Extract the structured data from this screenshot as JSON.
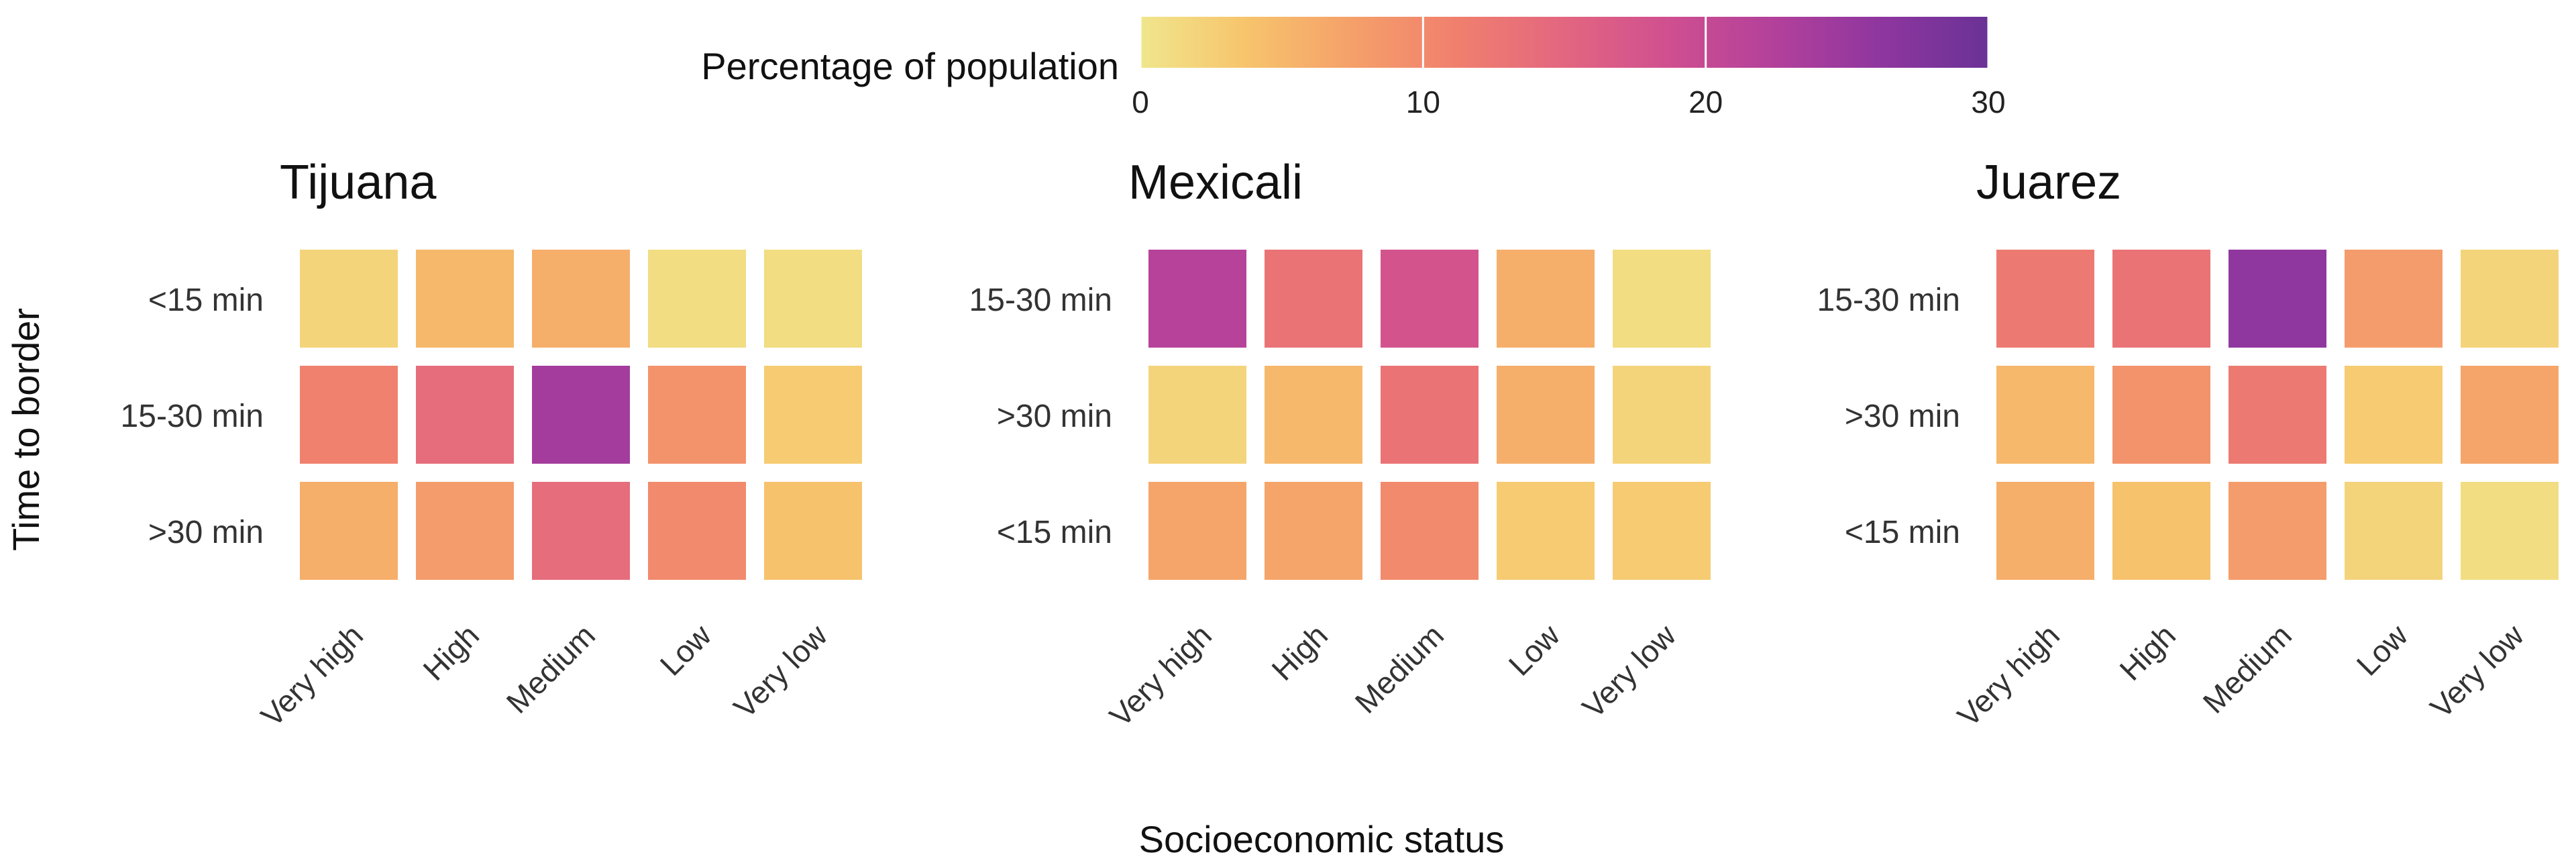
{
  "chart_data": {
    "type": "heatmap",
    "ylabel": "Time to border",
    "xlabel": "Socioeconomic status",
    "categories": [
      "Very high",
      "High",
      "Medium",
      "Low",
      "Very low"
    ],
    "legend": {
      "title": "Percentage of population",
      "min": 0,
      "max": 30,
      "ticks": [
        0,
        10,
        20,
        30
      ],
      "placement": "top",
      "colors": [
        "#f0e68c",
        "#f7c46c",
        "#f5a06a",
        "#f07f6e",
        "#e36680",
        "#cf4f90",
        "#b2409b",
        "#8e369f",
        "#6a3296"
      ]
    },
    "panels": [
      {
        "title": "Tijuana",
        "rows": [
          "<15 min",
          "15-30 min",
          ">30 min"
        ],
        "values": [
          [
            2,
            5,
            6,
            1,
            1
          ],
          [
            11,
            14,
            24,
            9,
            3
          ],
          [
            6,
            8,
            14,
            10,
            4
          ]
        ]
      },
      {
        "title": "Mexicali",
        "rows": [
          "15-30 min",
          ">30 min",
          "<15 min"
        ],
        "values": [
          [
            22,
            13,
            18,
            6,
            1
          ],
          [
            2,
            5,
            13,
            6,
            2
          ],
          [
            7,
            7,
            10,
            3,
            3
          ]
        ]
      },
      {
        "title": "Juarez",
        "rows": [
          "15-30 min",
          ">30 min",
          "<15 min"
        ],
        "values": [
          [
            12,
            13,
            26,
            8,
            2
          ],
          [
            5,
            9,
            12,
            3,
            7
          ],
          [
            6,
            4,
            8,
            2,
            1
          ]
        ]
      }
    ]
  }
}
